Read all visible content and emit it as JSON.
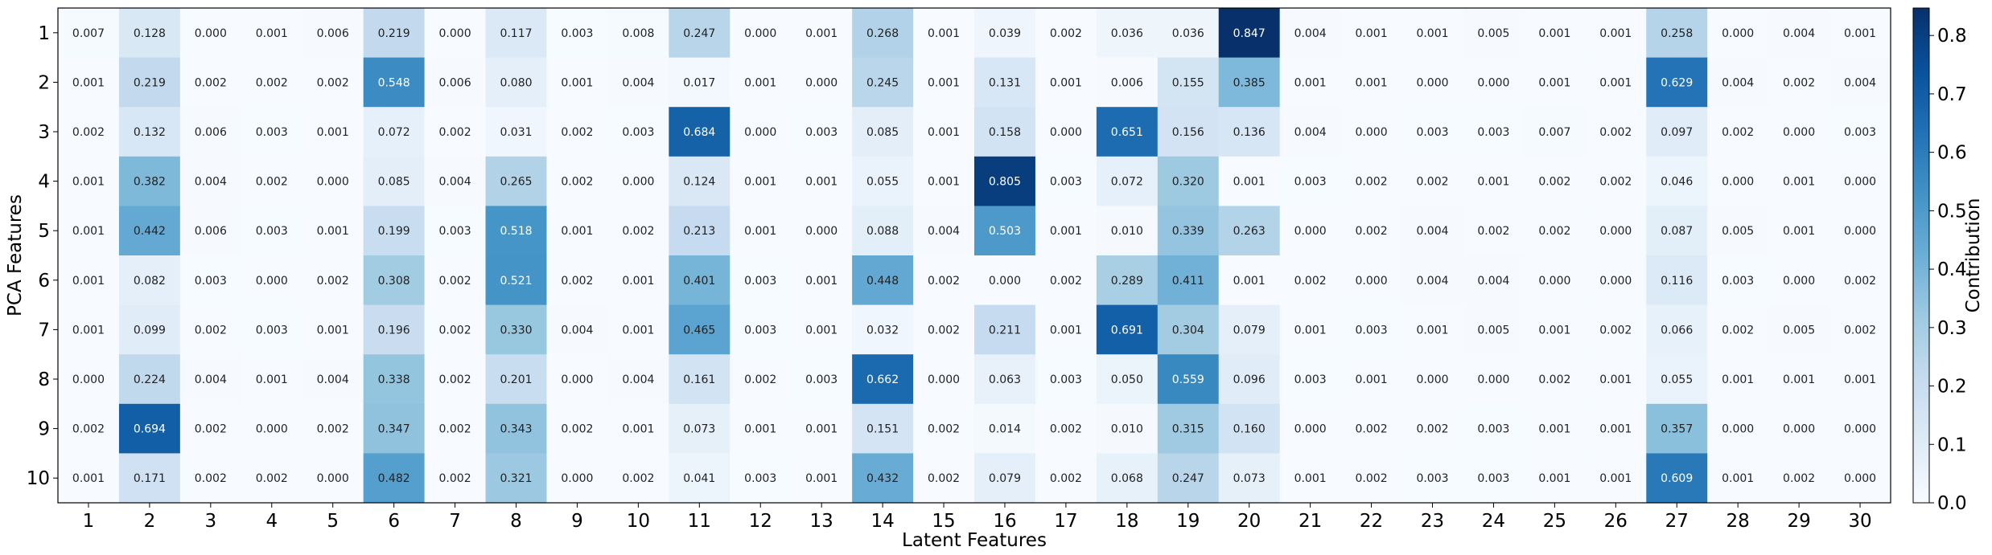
{
  "chart_data": {
    "type": "heatmap",
    "title": "",
    "xlabel": "Latent Features",
    "ylabel": "PCA Features",
    "colorbar_label": "Contribution",
    "colormap": "Blues",
    "colorbar_range": [
      0,
      0.847
    ],
    "colorbar_ticks": [
      "0.0",
      "0.1",
      "0.2",
      "0.3",
      "0.4",
      "0.5",
      "0.6",
      "0.7",
      "0.8"
    ],
    "x_categories": [
      "1",
      "2",
      "3",
      "4",
      "5",
      "6",
      "7",
      "8",
      "9",
      "10",
      "11",
      "12",
      "13",
      "14",
      "15",
      "16",
      "17",
      "18",
      "19",
      "20",
      "21",
      "22",
      "23",
      "24",
      "25",
      "26",
      "27",
      "28",
      "29",
      "30"
    ],
    "y_categories": [
      "1",
      "2",
      "3",
      "4",
      "5",
      "6",
      "7",
      "8",
      "9",
      "10"
    ],
    "values": [
      [
        "0.007",
        "0.128",
        "0.000",
        "0.001",
        "0.006",
        "0.219",
        "0.000",
        "0.117",
        "0.003",
        "0.008",
        "0.247",
        "0.000",
        "0.001",
        "0.268",
        "0.001",
        "0.039",
        "0.002",
        "0.036",
        "0.036",
        "0.847",
        "0.004",
        "0.001",
        "0.001",
        "0.005",
        "0.001",
        "0.001",
        "0.258",
        "0.000",
        "0.004",
        "0.001"
      ],
      [
        "0.001",
        "0.219",
        "0.002",
        "0.002",
        "0.002",
        "0.548",
        "0.006",
        "0.080",
        "0.001",
        "0.004",
        "0.017",
        "0.001",
        "0.000",
        "0.245",
        "0.001",
        "0.131",
        "0.001",
        "0.006",
        "0.155",
        "0.385",
        "0.001",
        "0.001",
        "0.000",
        "0.000",
        "0.001",
        "0.001",
        "0.629",
        "0.004",
        "0.002",
        "0.004"
      ],
      [
        "0.002",
        "0.132",
        "0.006",
        "0.003",
        "0.001",
        "0.072",
        "0.002",
        "0.031",
        "0.002",
        "0.003",
        "0.684",
        "0.000",
        "0.003",
        "0.085",
        "0.001",
        "0.158",
        "0.000",
        "0.651",
        "0.156",
        "0.136",
        "0.004",
        "0.000",
        "0.003",
        "0.003",
        "0.007",
        "0.002",
        "0.097",
        "0.002",
        "0.000",
        "0.003"
      ],
      [
        "0.001",
        "0.382",
        "0.004",
        "0.002",
        "0.000",
        "0.085",
        "0.004",
        "0.265",
        "0.002",
        "0.000",
        "0.124",
        "0.001",
        "0.001",
        "0.055",
        "0.001",
        "0.805",
        "0.003",
        "0.072",
        "0.320",
        "0.001",
        "0.003",
        "0.002",
        "0.002",
        "0.001",
        "0.002",
        "0.002",
        "0.046",
        "0.000",
        "0.001",
        "0.000"
      ],
      [
        "0.001",
        "0.442",
        "0.006",
        "0.003",
        "0.001",
        "0.199",
        "0.003",
        "0.518",
        "0.001",
        "0.002",
        "0.213",
        "0.001",
        "0.000",
        "0.088",
        "0.004",
        "0.503",
        "0.001",
        "0.010",
        "0.339",
        "0.263",
        "0.000",
        "0.002",
        "0.004",
        "0.002",
        "0.002",
        "0.000",
        "0.087",
        "0.005",
        "0.001",
        "0.000"
      ],
      [
        "0.001",
        "0.082",
        "0.003",
        "0.000",
        "0.002",
        "0.308",
        "0.002",
        "0.521",
        "0.002",
        "0.001",
        "0.401",
        "0.003",
        "0.001",
        "0.448",
        "0.002",
        "0.000",
        "0.002",
        "0.289",
        "0.411",
        "0.001",
        "0.002",
        "0.000",
        "0.004",
        "0.004",
        "0.000",
        "0.000",
        "0.116",
        "0.003",
        "0.000",
        "0.002"
      ],
      [
        "0.001",
        "0.099",
        "0.002",
        "0.003",
        "0.001",
        "0.196",
        "0.002",
        "0.330",
        "0.004",
        "0.001",
        "0.465",
        "0.003",
        "0.001",
        "0.032",
        "0.002",
        "0.211",
        "0.001",
        "0.691",
        "0.304",
        "0.079",
        "0.001",
        "0.003",
        "0.001",
        "0.005",
        "0.001",
        "0.002",
        "0.066",
        "0.002",
        "0.005",
        "0.002"
      ],
      [
        "0.000",
        "0.224",
        "0.004",
        "0.001",
        "0.004",
        "0.338",
        "0.002",
        "0.201",
        "0.000",
        "0.004",
        "0.161",
        "0.002",
        "0.003",
        "0.662",
        "0.000",
        "0.063",
        "0.003",
        "0.050",
        "0.559",
        "0.096",
        "0.003",
        "0.001",
        "0.000",
        "0.000",
        "0.002",
        "0.001",
        "0.055",
        "0.001",
        "0.001",
        "0.001"
      ],
      [
        "0.002",
        "0.694",
        "0.002",
        "0.000",
        "0.002",
        "0.347",
        "0.002",
        "0.343",
        "0.002",
        "0.001",
        "0.073",
        "0.001",
        "0.001",
        "0.151",
        "0.002",
        "0.014",
        "0.002",
        "0.010",
        "0.315",
        "0.160",
        "0.000",
        "0.002",
        "0.002",
        "0.003",
        "0.001",
        "0.001",
        "0.357",
        "0.000",
        "0.000",
        "0.000"
      ],
      [
        "0.001",
        "0.171",
        "0.002",
        "0.002",
        "0.000",
        "0.482",
        "0.002",
        "0.321",
        "0.000",
        "0.002",
        "0.041",
        "0.003",
        "0.001",
        "0.432",
        "0.002",
        "0.079",
        "0.002",
        "0.068",
        "0.247",
        "0.073",
        "0.001",
        "0.002",
        "0.003",
        "0.003",
        "0.001",
        "0.001",
        "0.609",
        "0.001",
        "0.002",
        "0.000"
      ]
    ]
  }
}
